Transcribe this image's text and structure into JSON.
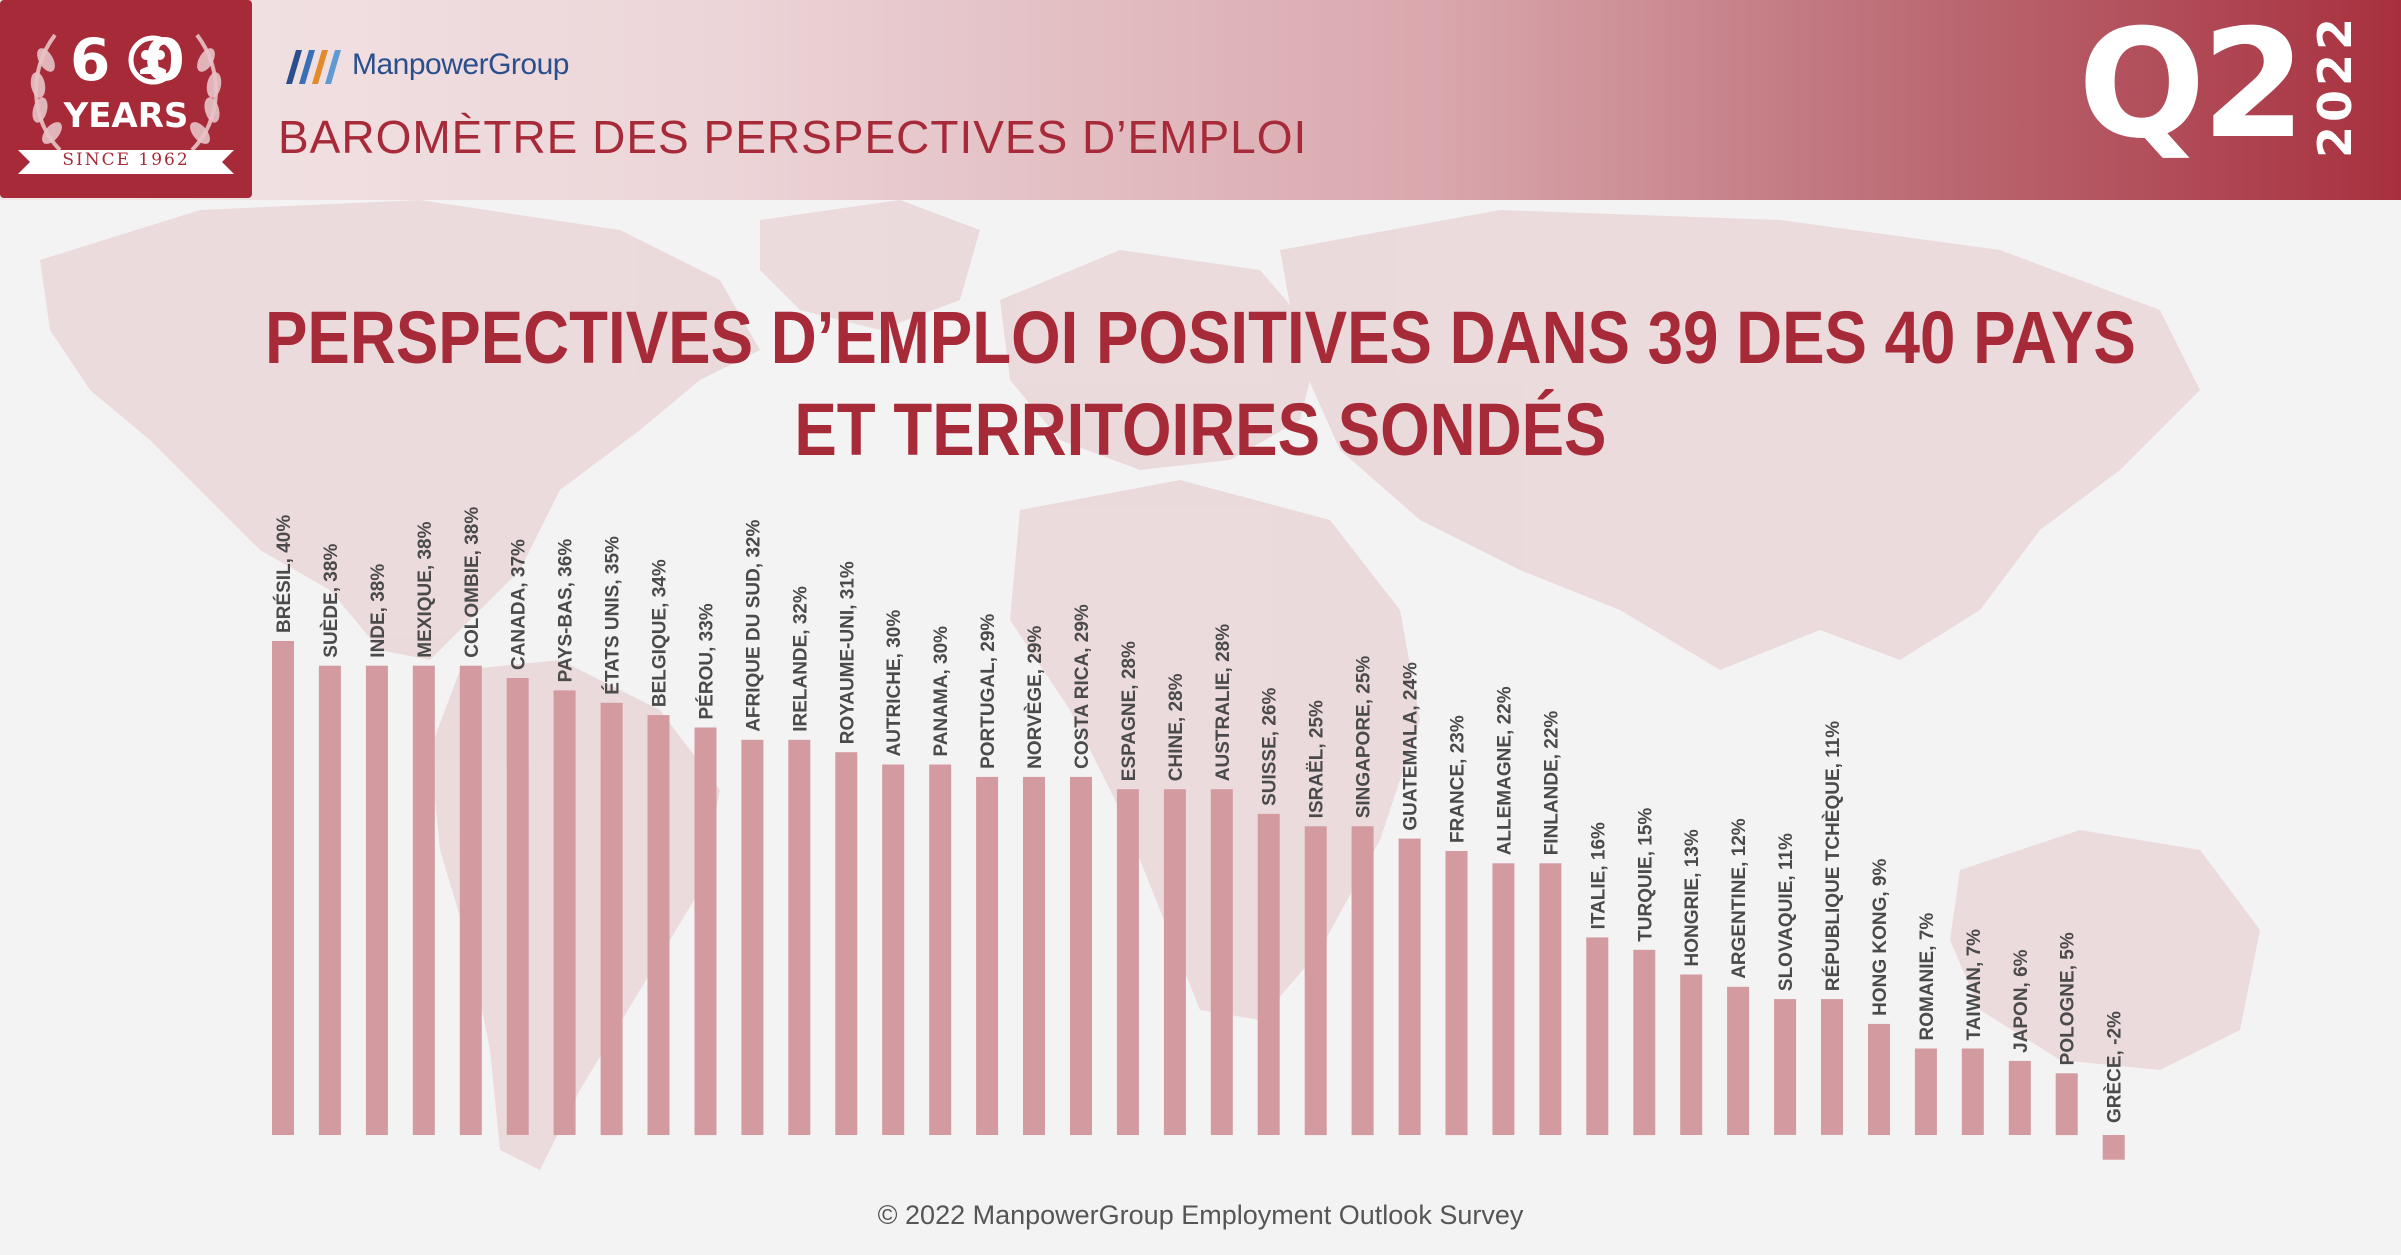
{
  "header": {
    "badge_number": "60",
    "badge_word": "YEARS",
    "badge_since": "SINCE 1962",
    "brand": "ManpowerGroup",
    "title": "BAROMÈTRE DES PERSPECTIVES D’EMPLOI",
    "quarter": "Q2",
    "year": "2022"
  },
  "footer": "© 2022 ManpowerGroup Employment Outlook Survey",
  "colors": {
    "bar": "#d39aa0",
    "accent": "#a72a38",
    "brand_blue": "#2b4e8c"
  },
  "chart_data": {
    "type": "bar",
    "title_lines": [
      "PERSPECTIVES D’EMPLOI POSITIVES DANS 39 DES 40 PAYS",
      "ET TERRITOIRES SONDÉS"
    ],
    "unit": "%",
    "categories": [
      "BRÉSIL",
      "SUÈDE",
      "INDE",
      "MEXIQUE",
      "COLOMBIE",
      "CANADA",
      "PAYS-BAS",
      "ÉTATS UNIS",
      "BELGIQUE",
      "PÉROU",
      "AFRIQUE DU SUD",
      "IRELANDE",
      "ROYAUME-UNI",
      "AUTRICHE",
      "PANAMA",
      "PORTUGAL",
      "NORVÈGE",
      "COSTA RICA",
      "ESPAGNE",
      "CHINE",
      "AUSTRALIE",
      "SUISSE",
      "ISRAËL",
      "SINGAPORE",
      "GUATEMALA",
      "FRANCE",
      "ALLEMAGNE",
      "FINLANDE",
      "ITALIE",
      "TURQUIE",
      "HONGRIE",
      "ARGENTINE",
      "SLOVAQUIE",
      "RÉPUBLIQUE TCHÈQUE",
      "HONG KONG",
      "ROMANIE",
      "TAIWAN",
      "JAPON",
      "POLOGNE",
      "GRÈCE"
    ],
    "values": [
      40,
      38,
      38,
      38,
      38,
      37,
      36,
      35,
      34,
      33,
      32,
      32,
      31,
      30,
      30,
      29,
      29,
      29,
      28,
      28,
      28,
      26,
      25,
      25,
      24,
      23,
      22,
      22,
      16,
      15,
      13,
      12,
      11,
      11,
      9,
      7,
      7,
      6,
      5,
      -2
    ],
    "ylim": [
      -2,
      40
    ],
    "grid": false,
    "legend": "none"
  }
}
